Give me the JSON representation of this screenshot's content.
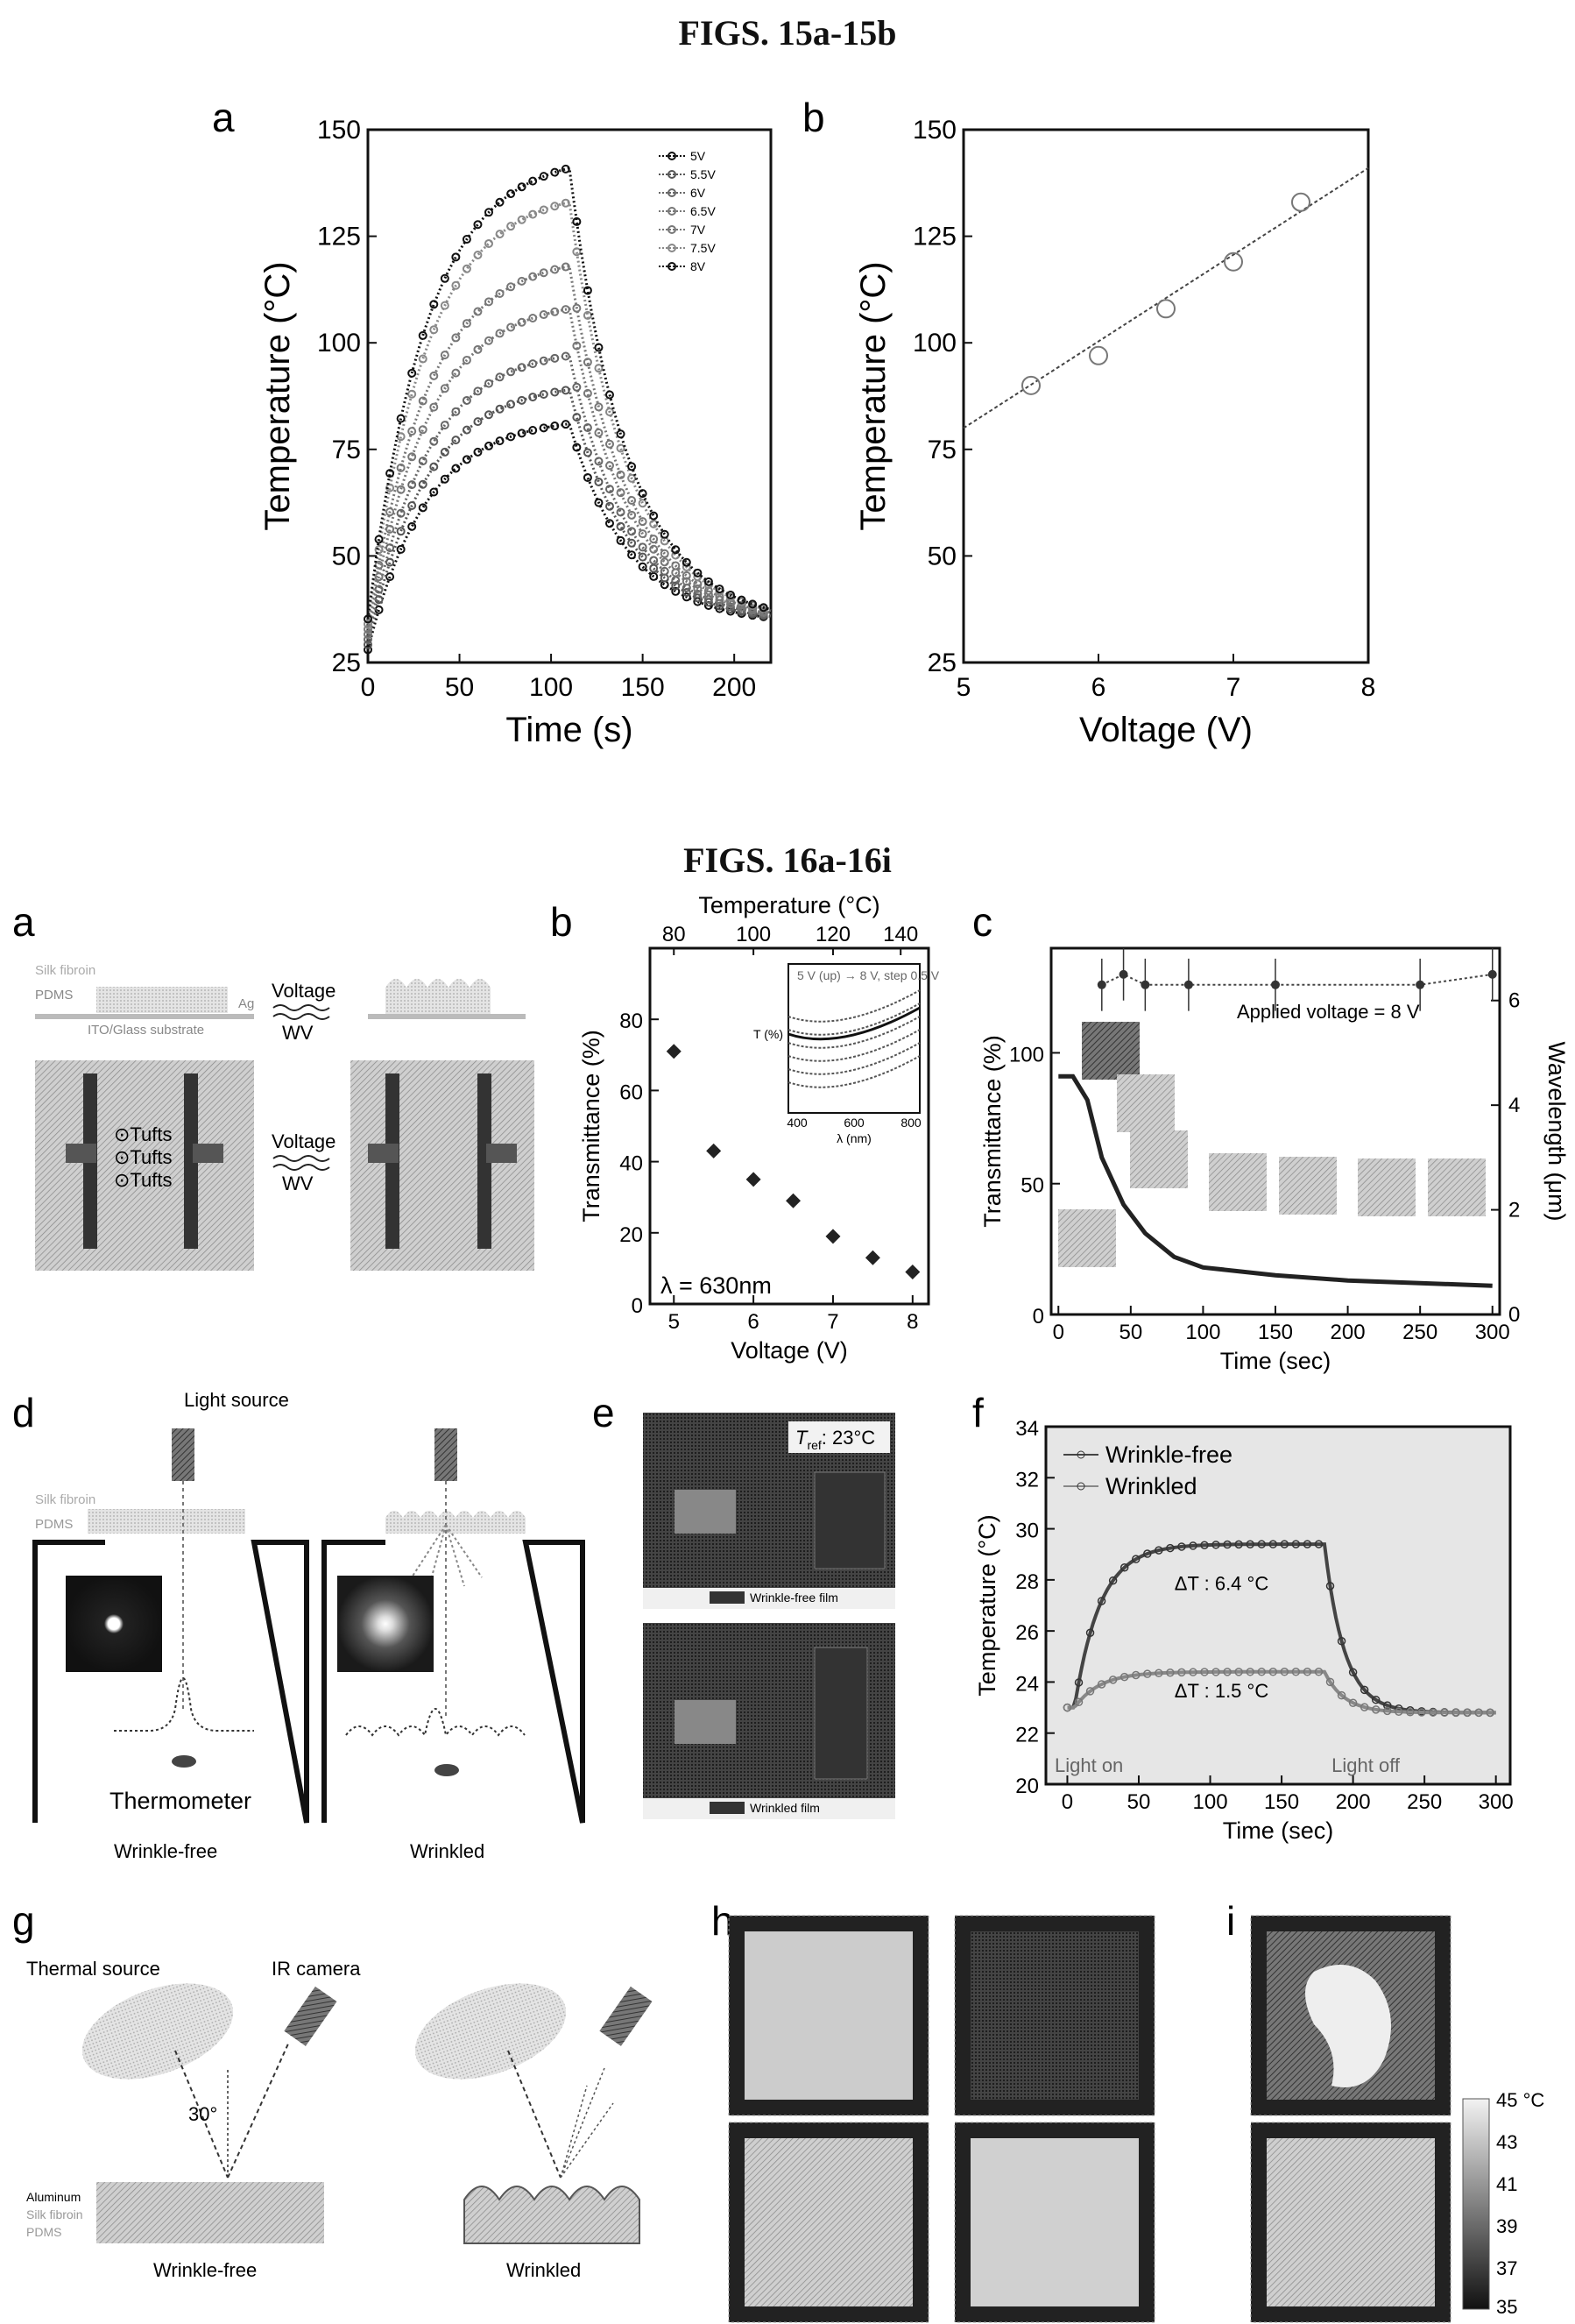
{
  "titles": {
    "fig15": "FIGS. 15a-15b",
    "fig16": "FIGS. 16a-16i"
  },
  "chart_data": [
    {
      "id": "15a",
      "panel": "a",
      "type": "line",
      "xlabel": "Time (s)",
      "ylabel": "Temperature (°C)",
      "xlim": [
        0,
        220
      ],
      "ylim": [
        25,
        150
      ],
      "xticks": [
        0,
        50,
        100,
        150,
        200
      ],
      "yticks": [
        25,
        50,
        75,
        100,
        125,
        150
      ],
      "legend_position": "top-right",
      "series": [
        {
          "name": "5V",
          "peak": 81,
          "color": "#111111"
        },
        {
          "name": "5.5V",
          "peak": 89,
          "color": "#555555"
        },
        {
          "name": "6V",
          "peak": 97,
          "color": "#666666"
        },
        {
          "name": "6.5V",
          "peak": 108,
          "color": "#777777"
        },
        {
          "name": "7V",
          "peak": 118,
          "color": "#777777"
        },
        {
          "name": "7.5V",
          "peak": 133,
          "color": "#888888"
        },
        {
          "name": "8V",
          "peak": 141,
          "color": "#111111"
        }
      ],
      "heating_end_s": 110,
      "start_temp": 28,
      "end_temp": 34
    },
    {
      "id": "15b",
      "panel": "b",
      "type": "scatter",
      "xlabel": "Voltage (V)",
      "ylabel": "Temperature (°C)",
      "xlim": [
        5,
        8
      ],
      "ylim": [
        25,
        150
      ],
      "xticks": [
        5,
        6,
        7,
        8
      ],
      "yticks": [
        25,
        50,
        75,
        100,
        125,
        150
      ],
      "points": [
        [
          5.5,
          90
        ],
        [
          6,
          97
        ],
        [
          6.5,
          108
        ],
        [
          7,
          119
        ],
        [
          7.5,
          133
        ]
      ],
      "fit": [
        [
          5,
          80
        ],
        [
          8,
          141
        ]
      ]
    },
    {
      "id": "16b",
      "panel": "b",
      "type": "scatter",
      "xlabel": "Voltage (V)",
      "ylabel": "Transmittance (%)",
      "x2label": "Temperature (°C)",
      "xlim": [
        4.7,
        8.2
      ],
      "ylim": [
        0,
        100
      ],
      "xticks": [
        5,
        6,
        7,
        8
      ],
      "yticks": [
        0,
        20,
        40,
        60,
        80
      ],
      "x2ticks": [
        "80",
        "100",
        "120",
        "140"
      ],
      "points": [
        [
          5,
          71
        ],
        [
          5.5,
          43
        ],
        [
          6,
          35
        ],
        [
          6.5,
          29
        ],
        [
          7,
          19
        ],
        [
          7.5,
          13
        ],
        [
          8,
          9
        ]
      ],
      "annotation": "λ = 630nm",
      "inset": {
        "ylabel": "T (%)",
        "xlabel": "λ (nm)",
        "xticks": [
          "400",
          "600",
          "800"
        ],
        "note": "5 V (up) → 8 V, step 0.5 V"
      }
    },
    {
      "id": "16c",
      "panel": "c",
      "type": "line",
      "xlabel": "Time (sec)",
      "ylabel": "Transmittance (%)",
      "y2label": "Wavelength (μm)",
      "xlim": [
        -5,
        305
      ],
      "ylim": [
        0,
        140
      ],
      "y2lim": [
        0,
        7
      ],
      "xticks": [
        0,
        50,
        100,
        150,
        200,
        250,
        300
      ],
      "yticks": [
        0,
        50,
        100
      ],
      "y2ticks": [
        0,
        2,
        4,
        6
      ],
      "transmittance": [
        [
          0,
          91
        ],
        [
          10,
          91
        ],
        [
          20,
          82
        ],
        [
          30,
          60
        ],
        [
          45,
          42
        ],
        [
          60,
          31
        ],
        [
          80,
          22
        ],
        [
          100,
          18
        ],
        [
          150,
          15
        ],
        [
          200,
          13
        ],
        [
          250,
          12
        ],
        [
          300,
          11
        ]
      ],
      "wavelength": [
        [
          30,
          6.3
        ],
        [
          45,
          6.5
        ],
        [
          60,
          6.3
        ],
        [
          90,
          6.3
        ],
        [
          150,
          6.3
        ],
        [
          250,
          6.3
        ],
        [
          300,
          6.5
        ]
      ],
      "annotation": "Applied voltage = 8 V"
    },
    {
      "id": "16f",
      "panel": "f",
      "type": "line",
      "xlabel": "Time (sec)",
      "ylabel": "Temperature (°C)",
      "xlim": [
        -15,
        310
      ],
      "ylim": [
        20,
        34
      ],
      "xticks": [
        0,
        50,
        100,
        150,
        200,
        250,
        300
      ],
      "yticks": [
        20,
        22,
        24,
        26,
        28,
        30,
        32,
        34
      ],
      "series": [
        {
          "name": "Wrinkle-free",
          "base": 23,
          "plateau": 29.4
        },
        {
          "name": "Wrinkled",
          "base": 23,
          "plateau": 24.4
        }
      ],
      "annotations": [
        "ΔT : 6.4 °C",
        "ΔT : 1.5 °C",
        "Light on",
        "Light off"
      ]
    }
  ],
  "schematics": {
    "a": {
      "layer1": "Silk fibroin",
      "layer2": "PDMS",
      "substrate": "ITO/Glass substrate",
      "ag": "Ag",
      "voltage": "Voltage",
      "wv": "WV",
      "logos": [
        "⊙Tufts",
        "⊙Tufts",
        "⊙Tufts"
      ]
    },
    "d": {
      "light": "Light source",
      "layer1": "Silk fibroin",
      "layer2": "PDMS",
      "thermo": "Thermometer",
      "left": "Wrinkle-free",
      "right": "Wrinkled"
    },
    "e": {
      "tref": "T",
      "tref_sub": "ref",
      "tref_val": ": 23°C",
      "label1": "Wrinkle-free film",
      "label2": "Wrinkled film"
    },
    "g": {
      "thermal": "Thermal source",
      "ir": "IR camera",
      "angle": "30°",
      "l1": "Aluminum",
      "l2": "Silk fibroin",
      "l3": "PDMS",
      "left": "Wrinkle-free",
      "right": "Wrinkled"
    },
    "scale": {
      "unit": "45 °C",
      "ticks": [
        "43",
        "41",
        "39",
        "37",
        "35"
      ]
    }
  },
  "panel_labels": {
    "a": "a",
    "b": "b",
    "c": "c",
    "d": "d",
    "e": "e",
    "f": "f",
    "g": "g",
    "h": "h",
    "i": "i"
  }
}
